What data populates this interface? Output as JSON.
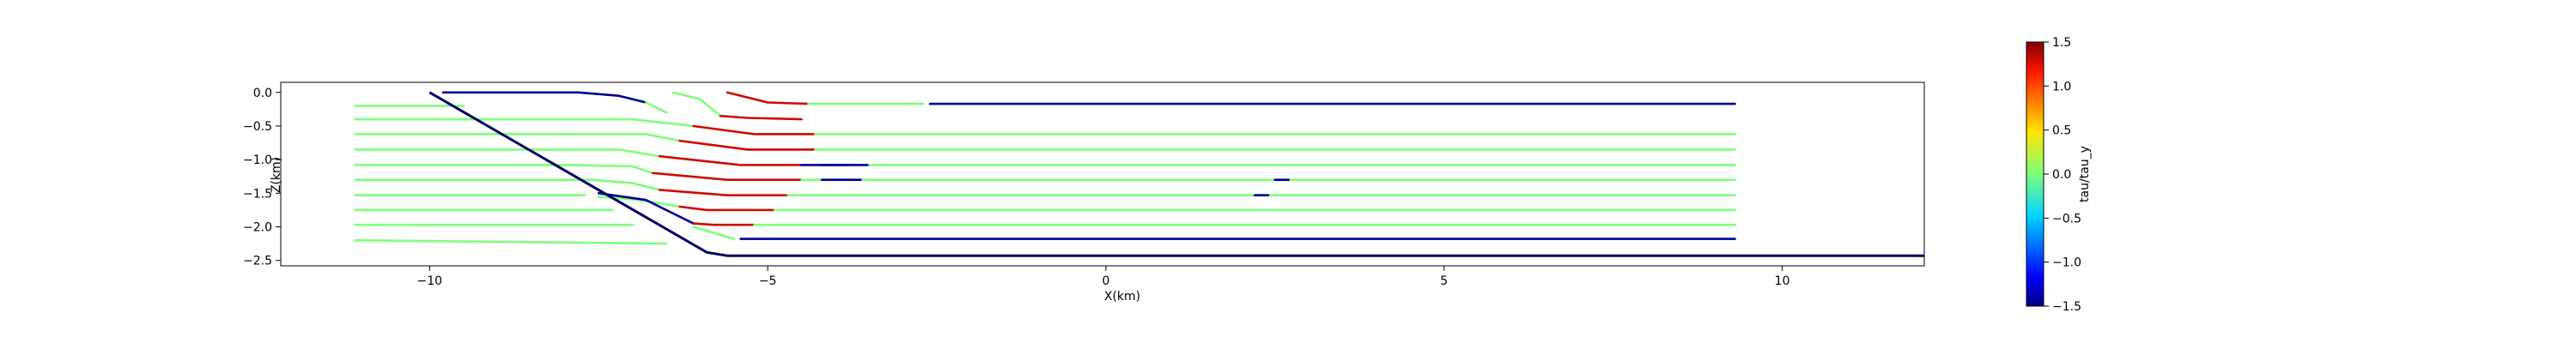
{
  "chart_data": {
    "type": "line",
    "title": "",
    "xlabel": "X(km)",
    "ylabel": "Z(km)",
    "xlim": [
      -12.2,
      12.1
    ],
    "ylim": [
      -2.58,
      0.15
    ],
    "xticks": [
      -10,
      -5,
      0,
      5,
      10
    ],
    "xtick_labels": [
      "−10",
      "−5",
      "0",
      "5",
      "10"
    ],
    "yticks": [
      0.0,
      -0.5,
      -1.0,
      -1.5,
      -2.0,
      -2.5
    ],
    "ytick_labels": [
      "0.0",
      "−0.5",
      "−1.0",
      "−1.5",
      "−2.0",
      "−2.5"
    ],
    "grid": false,
    "colorbar": {
      "label": "tau/tau_y",
      "range": [
        -1.5,
        1.5
      ],
      "ticks": [
        1.5,
        1.0,
        0.5,
        0.0,
        -0.5,
        -1.0,
        -1.5
      ],
      "tick_labels": [
        "1.5",
        "1.0",
        "0.5",
        "0.0",
        "−0.5",
        "−1.0",
        "−1.5"
      ],
      "colormap": "jet"
    },
    "boundary": {
      "name": "boundary",
      "color": "#000060",
      "x": [
        -10.0,
        -5.9,
        -5.6,
        12.1
      ],
      "z": [
        0.0,
        -2.38,
        -2.43,
        -2.43
      ]
    },
    "streamlines": [
      {
        "segments": [
          {
            "x": [
              -9.8,
              -7.8,
              -7.2,
              -6.8
            ],
            "z": [
              0.0,
              0.0,
              -0.05,
              -0.15
            ],
            "tau": -1.45
          },
          {
            "x": [
              -6.8,
              -6.5
            ],
            "z": [
              -0.15,
              -0.3
            ],
            "tau": 0.0
          }
        ]
      },
      {
        "segments": [
          {
            "x": [
              -6.4,
              -6.0,
              -5.7
            ],
            "z": [
              0.0,
              -0.1,
              -0.35
            ],
            "tau": 0.0
          },
          {
            "x": [
              -5.7,
              -5.3,
              -4.5
            ],
            "z": [
              -0.35,
              -0.38,
              -0.4
            ],
            "tau": 1.3
          }
        ]
      },
      {
        "segments": [
          {
            "x": [
              -11.1,
              -9.5
            ],
            "z": [
              -0.2,
              -0.2
            ],
            "tau": 0.0
          }
        ]
      },
      {
        "segments": [
          {
            "x": [
              -5.6,
              -5.0,
              -4.4
            ],
            "z": [
              0.0,
              -0.15,
              -0.17
            ],
            "tau": 1.3
          },
          {
            "x": [
              -4.4,
              -2.7
            ],
            "z": [
              -0.17,
              -0.17
            ],
            "tau": 0.0
          },
          {
            "x": [
              -2.6,
              9.3
            ],
            "z": [
              -0.17,
              -0.17
            ],
            "tau": -1.45
          }
        ]
      },
      {
        "segments": [
          {
            "x": [
              -11.1,
              -9.3
            ],
            "z": [
              -0.4,
              -0.4
            ],
            "tau": 0.0
          }
        ]
      },
      {
        "segments": [
          {
            "x": [
              -9.5,
              -7.0,
              -6.1
            ],
            "z": [
              -0.4,
              -0.4,
              -0.5
            ],
            "tau": 0.0
          },
          {
            "x": [
              -6.1,
              -5.2,
              -4.3
            ],
            "z": [
              -0.5,
              -0.62,
              -0.62
            ],
            "tau": 1.3
          },
          {
            "x": [
              -4.3,
              9.3
            ],
            "z": [
              -0.62,
              -0.62
            ],
            "tau": 0.0
          }
        ]
      },
      {
        "segments": [
          {
            "x": [
              -11.1,
              -8.0
            ],
            "z": [
              -0.62,
              -0.62
            ],
            "tau": 0.0
          }
        ]
      },
      {
        "segments": [
          {
            "x": [
              -8.0,
              -6.8,
              -6.3
            ],
            "z": [
              -0.62,
              -0.62,
              -0.72
            ],
            "tau": 0.0
          },
          {
            "x": [
              -6.3,
              -5.3,
              -4.3
            ],
            "z": [
              -0.72,
              -0.85,
              -0.85
            ],
            "tau": 1.3
          },
          {
            "x": [
              -4.3,
              9.3
            ],
            "z": [
              -0.85,
              -0.85
            ],
            "tau": 0.0
          }
        ]
      },
      {
        "segments": [
          {
            "x": [
              -11.1,
              -8.3
            ],
            "z": [
              -0.85,
              -0.85
            ],
            "tau": 0.0
          }
        ]
      },
      {
        "segments": [
          {
            "x": [
              -8.3,
              -7.2,
              -6.6
            ],
            "z": [
              -0.85,
              -0.85,
              -0.95
            ],
            "tau": 0.0
          },
          {
            "x": [
              -6.6,
              -5.4,
              -4.5
            ],
            "z": [
              -0.95,
              -1.08,
              -1.08
            ],
            "tau": 1.3
          },
          {
            "x": [
              -4.5,
              -3.5
            ],
            "z": [
              -1.08,
              -1.08
            ],
            "tau": -1.45
          },
          {
            "x": [
              -3.5,
              9.3
            ],
            "z": [
              -1.08,
              -1.08
            ],
            "tau": 0.0
          }
        ]
      },
      {
        "segments": [
          {
            "x": [
              -11.1,
              -7.9
            ],
            "z": [
              -1.08,
              -1.08
            ],
            "tau": 0.0
          }
        ]
      },
      {
        "segments": [
          {
            "x": [
              -7.9,
              -7.0,
              -6.7
            ],
            "z": [
              -1.08,
              -1.1,
              -1.2
            ],
            "tau": 0.0
          },
          {
            "x": [
              -6.7,
              -5.6,
              -4.5
            ],
            "z": [
              -1.2,
              -1.3,
              -1.3
            ],
            "tau": 1.3
          },
          {
            "x": [
              -4.5,
              -3.9
            ],
            "z": [
              -1.3,
              -1.3
            ],
            "tau": 0.0
          },
          {
            "x": [
              -3.9,
              -3.6
            ],
            "z": [
              -1.3,
              -1.3
            ],
            "tau": -1.45
          },
          {
            "x": [
              -3.6,
              9.3
            ],
            "z": [
              -1.3,
              -1.3
            ],
            "tau": 0.0
          }
        ]
      },
      {
        "segments": [
          {
            "x": [
              -11.1,
              -7.6
            ],
            "z": [
              -1.3,
              -1.3
            ],
            "tau": 0.0
          }
        ]
      },
      {
        "segments": [
          {
            "x": [
              -7.6,
              -7.0,
              -6.6
            ],
            "z": [
              -1.3,
              -1.35,
              -1.45
            ],
            "tau": 0.0
          },
          {
            "x": [
              -6.6,
              -5.6,
              -4.7
            ],
            "z": [
              -1.45,
              -1.53,
              -1.53
            ],
            "tau": 1.3
          },
          {
            "x": [
              -4.7,
              9.3
            ],
            "z": [
              -1.53,
              -1.53
            ],
            "tau": 0.0
          }
        ]
      },
      {
        "segments": [
          {
            "x": [
              -11.1,
              -7.7
            ],
            "z": [
              -1.53,
              -1.53
            ],
            "tau": 0.0
          }
        ]
      },
      {
        "segments": [
          {
            "x": [
              -7.5,
              -6.9,
              -6.3
            ],
            "z": [
              -1.55,
              -1.6,
              -1.7
            ],
            "tau": 0.0
          },
          {
            "x": [
              -6.3,
              -5.9,
              -4.9
            ],
            "z": [
              -1.7,
              -1.75,
              -1.75
            ],
            "tau": 1.3
          },
          {
            "x": [
              -4.9,
              9.3
            ],
            "z": [
              -1.75,
              -1.75
            ],
            "tau": 0.0
          }
        ]
      },
      {
        "segments": [
          {
            "x": [
              -11.1,
              -7.3
            ],
            "z": [
              -1.75,
              -1.75
            ],
            "tau": 0.0
          }
        ]
      },
      {
        "segments": [
          {
            "x": [
              -7.5,
              -6.8,
              -6.1
            ],
            "z": [
              -1.5,
              -1.6,
              -1.95
            ],
            "tau": -1.45
          },
          {
            "x": [
              -6.1,
              -5.8,
              -5.2
            ],
            "z": [
              -1.95,
              -1.97,
              -1.97
            ],
            "tau": 1.3
          },
          {
            "x": [
              -5.2,
              9.3
            ],
            "z": [
              -1.97,
              -1.97
            ],
            "tau": 0.0
          }
        ]
      },
      {
        "segments": [
          {
            "x": [
              -11.1,
              -7.0
            ],
            "z": [
              -1.97,
              -1.97
            ],
            "tau": 0.0
          }
        ]
      },
      {
        "segments": [
          {
            "x": [
              -6.1,
              -5.5
            ],
            "z": [
              -2.0,
              -2.18
            ],
            "tau": 0.0
          },
          {
            "x": [
              -5.4,
              9.3
            ],
            "z": [
              -2.18,
              -2.18
            ],
            "tau": -1.45
          }
        ]
      },
      {
        "segments": [
          {
            "x": [
              -11.1,
              -6.5
            ],
            "z": [
              -2.2,
              -2.25
            ],
            "tau": 0.0
          }
        ]
      },
      {
        "segments": [
          {
            "x": [
              -4.2,
              -3.8
            ],
            "z": [
              -1.08,
              -1.08
            ],
            "tau": -1.45
          }
        ]
      },
      {
        "segments": [
          {
            "x": [
              -4.2,
              -3.9
            ],
            "z": [
              -1.3,
              -1.3
            ],
            "tau": -1.45
          }
        ]
      },
      {
        "segments": [
          {
            "x": [
              2.2,
              2.4
            ],
            "z": [
              -1.53,
              -1.53
            ],
            "tau": -1.45
          }
        ]
      },
      {
        "segments": [
          {
            "x": [
              2.5,
              2.7
            ],
            "z": [
              -1.3,
              -1.3
            ],
            "tau": -1.45
          }
        ]
      }
    ]
  }
}
